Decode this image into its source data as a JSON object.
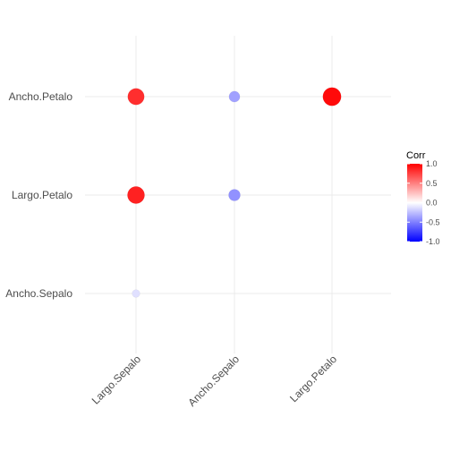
{
  "chart_data": {
    "type": "heatmap",
    "title": "",
    "x_categories": [
      "Largo.Sepalo",
      "Ancho.Sepalo",
      "Largo.Petalo"
    ],
    "y_categories": [
      "Ancho.Sepalo",
      "Largo.Petalo",
      "Ancho.Petalo"
    ],
    "cells": [
      {
        "x": "Largo.Sepalo",
        "y": "Ancho.Sepalo",
        "corr": -0.12
      },
      {
        "x": "Largo.Sepalo",
        "y": "Largo.Petalo",
        "corr": 0.87
      },
      {
        "x": "Largo.Sepalo",
        "y": "Ancho.Petalo",
        "corr": 0.82
      },
      {
        "x": "Ancho.Sepalo",
        "y": "Largo.Petalo",
        "corr": -0.43
      },
      {
        "x": "Ancho.Sepalo",
        "y": "Ancho.Petalo",
        "corr": -0.37
      },
      {
        "x": "Largo.Petalo",
        "y": "Ancho.Petalo",
        "corr": 0.96
      }
    ],
    "legend": {
      "title": "Corr",
      "ticks": [
        "1.0",
        "0.5",
        "0.0",
        "-0.5",
        "-1.0"
      ],
      "tick_values": [
        1.0,
        0.5,
        0.0,
        -0.5,
        -1.0
      ],
      "range": [
        -1,
        1
      ],
      "placement": "right"
    },
    "colors": {
      "low": "#0000ff",
      "mid": "#ffffff",
      "high": "#ff0000",
      "grid": "#ebebeb"
    },
    "x_label_angle": -45,
    "grid": true
  }
}
